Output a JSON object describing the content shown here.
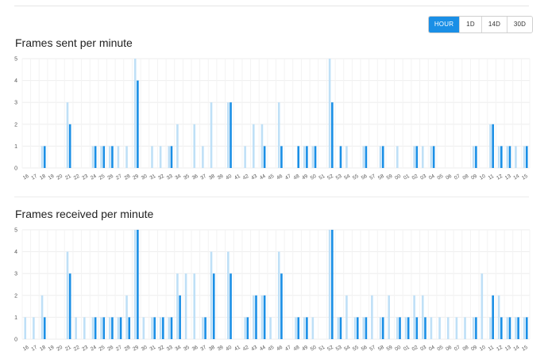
{
  "range_selector": {
    "options": [
      "HOUR",
      "1D",
      "14D",
      "30D"
    ],
    "active": "HOUR"
  },
  "colors": {
    "accent": "#1a8fe6",
    "light_series": "#bfe0f7",
    "grid": "#eeeeee"
  },
  "chart_data": [
    {
      "type": "bar",
      "title": "Frames sent per minute",
      "categories": [
        "16",
        "17",
        "18",
        "19",
        "20",
        "21",
        "22",
        "23",
        "24",
        "25",
        "26",
        "27",
        "28",
        "29",
        "30",
        "31",
        "32",
        "33",
        "34",
        "35",
        "36",
        "37",
        "38",
        "39",
        "40",
        "41",
        "42",
        "43",
        "44",
        "45",
        "46",
        "47",
        "48",
        "49",
        "50",
        "51",
        "52",
        "53",
        "54",
        "55",
        "56",
        "57",
        "58",
        "59",
        "00",
        "01",
        "02",
        "03",
        "04",
        "05",
        "06",
        "07",
        "08",
        "09",
        "10",
        "11",
        "12",
        "13",
        "14",
        "15"
      ],
      "yticks": [
        0,
        1,
        2,
        3,
        4,
        5
      ],
      "ylim": [
        0,
        5
      ],
      "grid": true,
      "series": [
        {
          "values": [
            0,
            0,
            1,
            0,
            0,
            3,
            0,
            0,
            1,
            1,
            1,
            1,
            1,
            5,
            0,
            1,
            1,
            1,
            2,
            0,
            2,
            1,
            3,
            0,
            3,
            0,
            1,
            2,
            2,
            0,
            3,
            0,
            0,
            1,
            1,
            0,
            5,
            0,
            1,
            0,
            1,
            0,
            1,
            0,
            1,
            0,
            1,
            1,
            1,
            0,
            0,
            0,
            0,
            1,
            0,
            2,
            1,
            1,
            1,
            1
          ]
        },
        {
          "values": [
            0,
            0,
            1,
            0,
            0,
            2,
            0,
            0,
            1,
            1,
            1,
            0,
            0,
            4,
            0,
            0,
            0,
            1,
            0,
            0,
            0,
            0,
            0,
            0,
            3,
            0,
            0,
            0,
            1,
            0,
            1,
            0,
            1,
            1,
            1,
            0,
            3,
            1,
            0,
            0,
            1,
            0,
            1,
            0,
            0,
            0,
            1,
            0,
            1,
            0,
            0,
            0,
            0,
            1,
            0,
            2,
            1,
            1,
            0,
            1
          ]
        }
      ]
    },
    {
      "type": "bar",
      "title": "Frames received per minute",
      "categories": [
        "16",
        "17",
        "18",
        "19",
        "20",
        "21",
        "22",
        "23",
        "24",
        "25",
        "26",
        "27",
        "28",
        "29",
        "30",
        "31",
        "32",
        "33",
        "34",
        "35",
        "36",
        "37",
        "38",
        "39",
        "40",
        "41",
        "42",
        "43",
        "44",
        "45",
        "46",
        "47",
        "48",
        "49",
        "50",
        "51",
        "52",
        "53",
        "54",
        "55",
        "56",
        "57",
        "58",
        "59",
        "00",
        "01",
        "02",
        "03",
        "04",
        "05",
        "06",
        "07",
        "08",
        "09",
        "10",
        "11",
        "12",
        "13",
        "14",
        "15"
      ],
      "yticks": [
        0,
        1,
        2,
        3,
        4,
        5
      ],
      "ylim": [
        0,
        5
      ],
      "grid": true,
      "series": [
        {
          "values": [
            1,
            1,
            2,
            0,
            0,
            4,
            1,
            1,
            1,
            1,
            1,
            1,
            2,
            5,
            1,
            1,
            1,
            1,
            3,
            3,
            3,
            1,
            4,
            0,
            4,
            0,
            1,
            2,
            2,
            1,
            4,
            0,
            1,
            1,
            1,
            0,
            5,
            1,
            2,
            1,
            1,
            2,
            1,
            2,
            1,
            1,
            2,
            2,
            1,
            1,
            1,
            1,
            1,
            1,
            3,
            1,
            2,
            1,
            1,
            1
          ]
        },
        {
          "values": [
            0,
            0,
            1,
            0,
            0,
            3,
            0,
            0,
            1,
            1,
            1,
            1,
            1,
            5,
            0,
            1,
            1,
            1,
            2,
            0,
            0,
            1,
            3,
            0,
            3,
            0,
            1,
            2,
            2,
            0,
            3,
            0,
            1,
            1,
            0,
            0,
            5,
            1,
            0,
            1,
            1,
            0,
            1,
            0,
            1,
            1,
            1,
            1,
            0,
            0,
            0,
            0,
            0,
            1,
            0,
            2,
            1,
            1,
            1,
            1
          ]
        }
      ]
    }
  ]
}
